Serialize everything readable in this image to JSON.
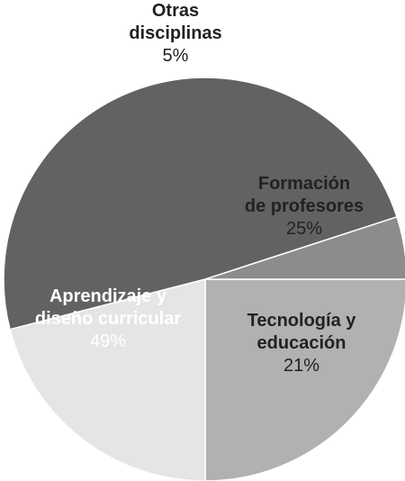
{
  "chart_data": {
    "type": "pie",
    "categories": [
      "Formación de profesores",
      "Tecnología y educación",
      "Aprendizaje y diseño curricular",
      "Otras disciplinas"
    ],
    "values": [
      25,
      21,
      49,
      5
    ],
    "value_labels": [
      "25%",
      "21%",
      "49%",
      "5%"
    ],
    "colors": [
      "#b1b1b1",
      "#e5e5e6",
      "#626263",
      "#8c8c8d"
    ],
    "label_lines": [
      [
        "Formación",
        "de profesores"
      ],
      [
        "Tecnología y",
        "educación"
      ],
      [
        "Aprendizaje y",
        "diseño curricular"
      ],
      [
        "Otras",
        "disciplinas"
      ]
    ],
    "start_angle_deg": 0,
    "direction": "clockwise"
  }
}
